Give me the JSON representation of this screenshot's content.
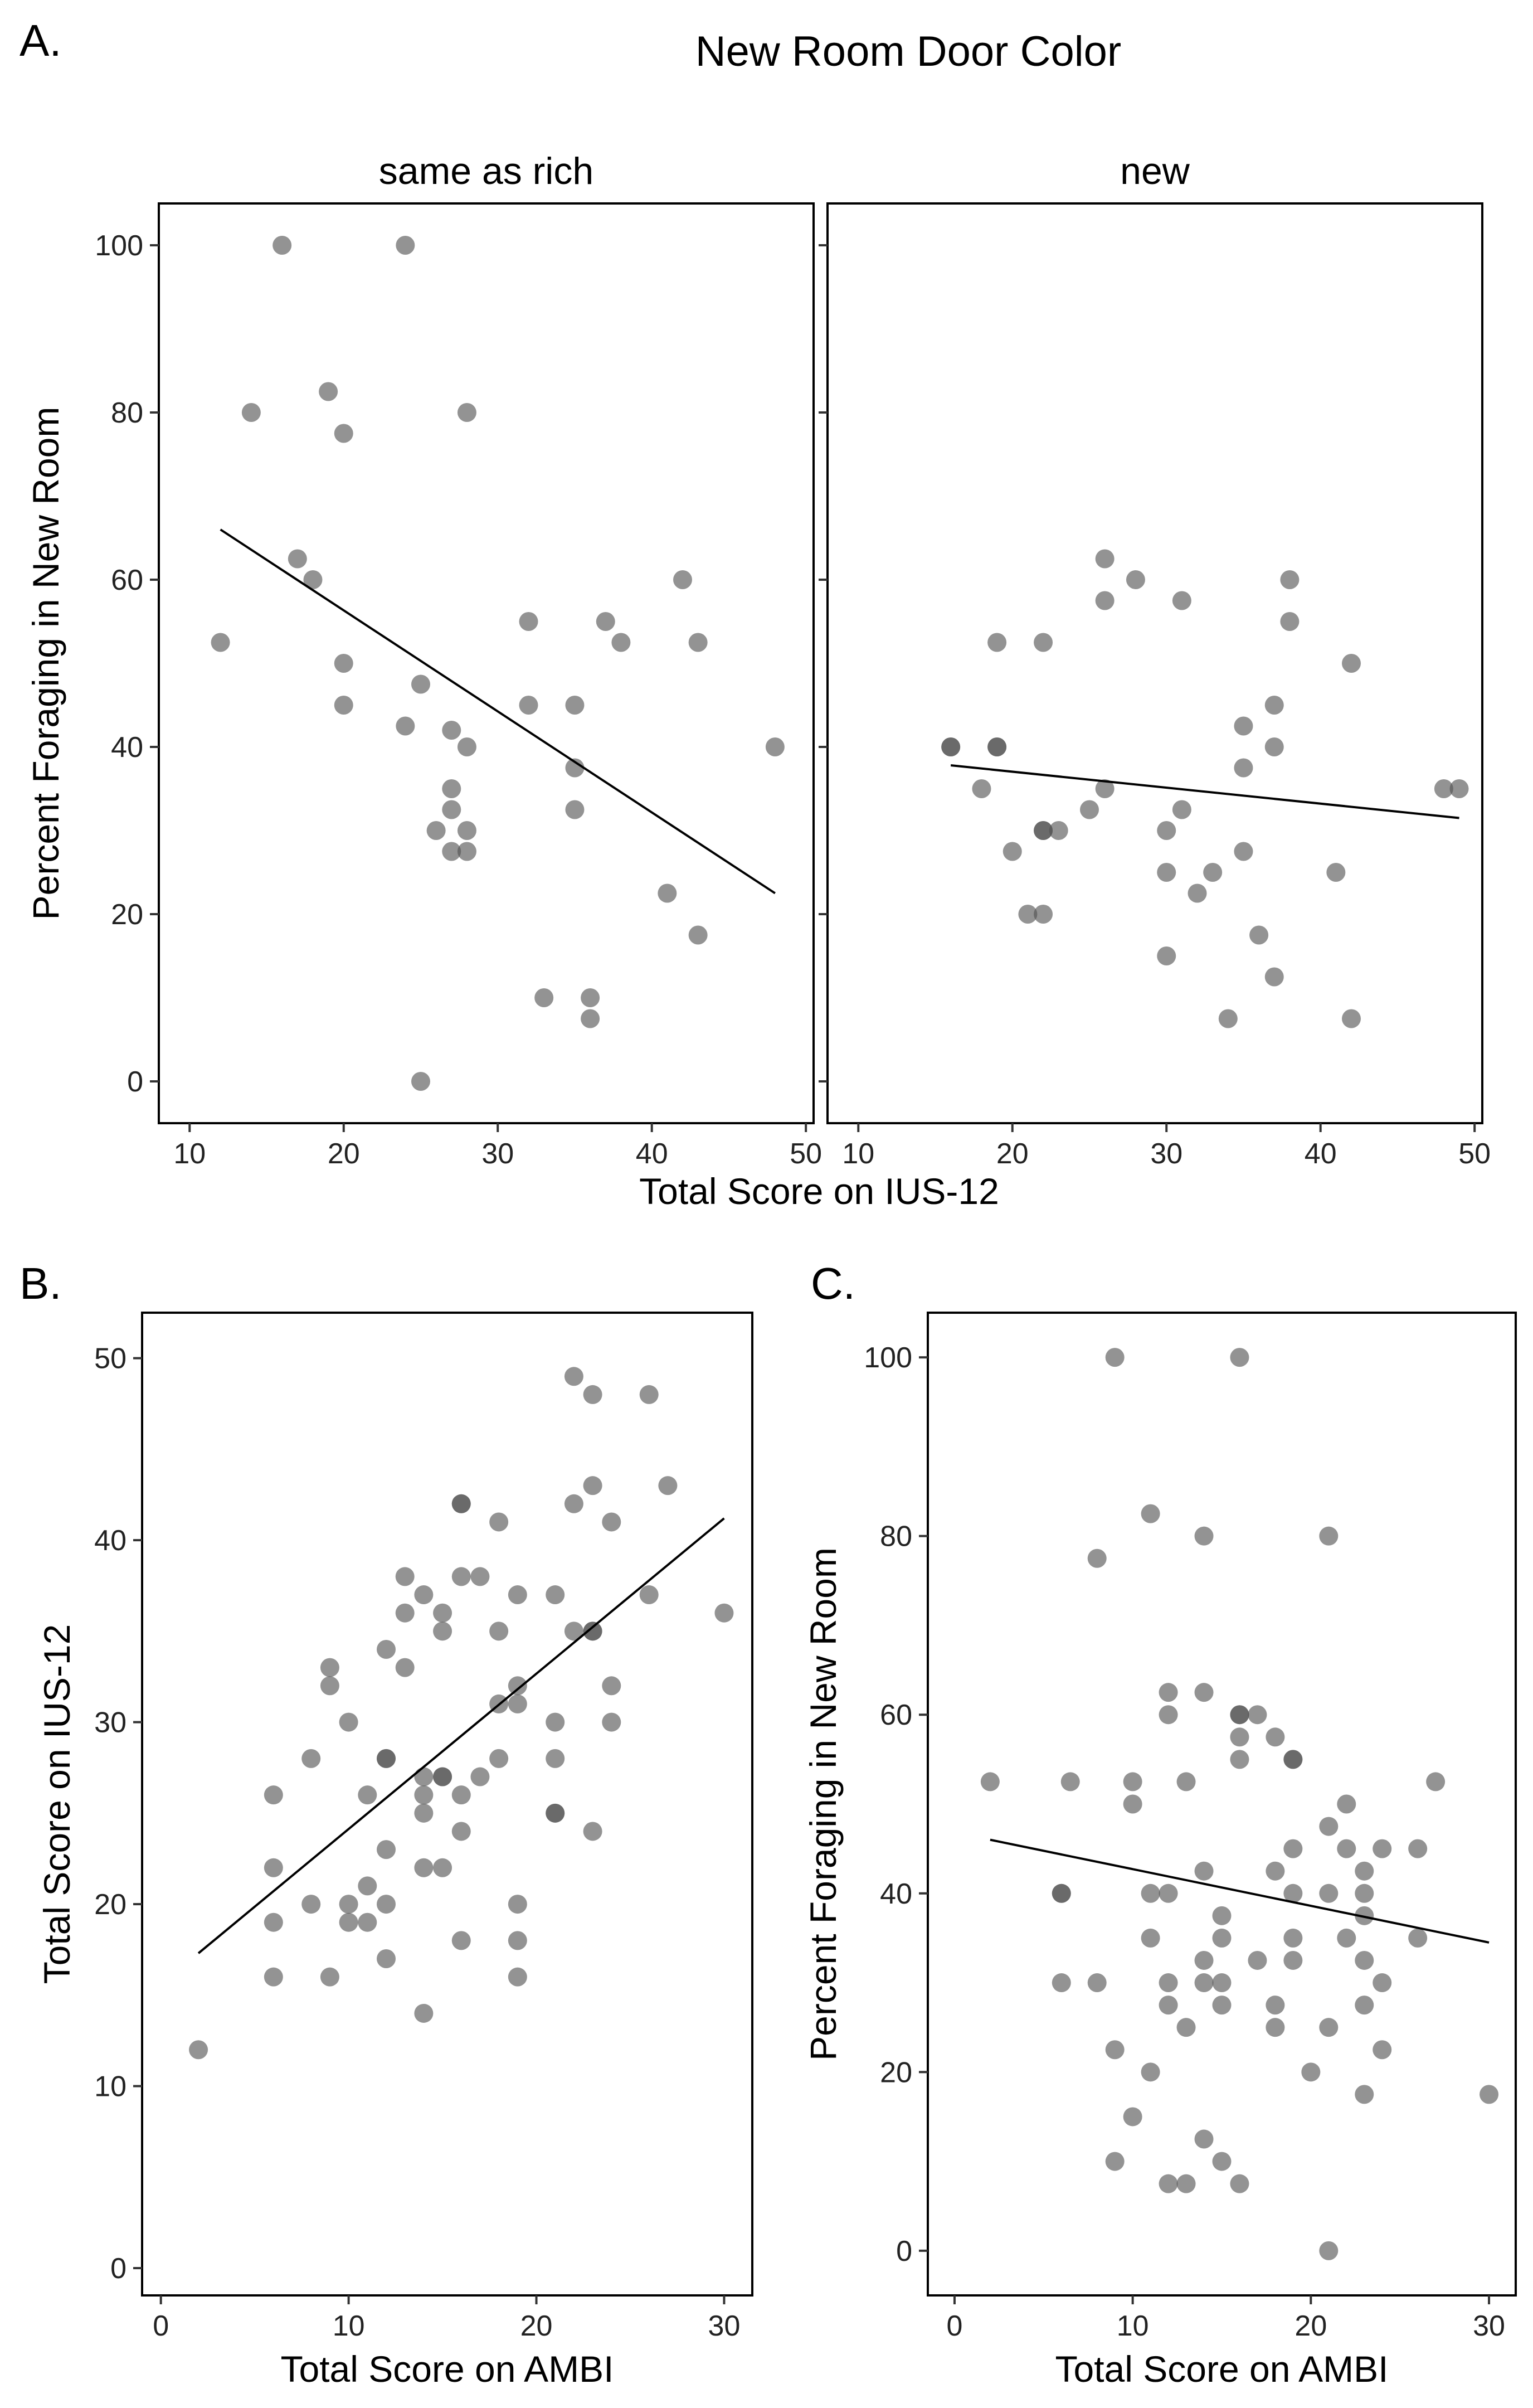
{
  "figure_title": "New Room Door Color",
  "panel_labels": {
    "a": "A.",
    "b": "B.",
    "c": "C."
  },
  "chart_data": [
    {
      "id": "A-left",
      "type": "scatter",
      "panel": "A.",
      "title": "New Room Door Color",
      "facet_label": "same as rich",
      "xlabel": "Total Score on IUS-12",
      "ylabel": "Percent Foraging in New Room",
      "xlim": [
        8,
        50.5
      ],
      "ylim": [
        -5,
        105
      ],
      "xticks": [
        10,
        20,
        30,
        40,
        50
      ],
      "yticks": [
        0,
        20,
        40,
        60,
        80,
        100
      ],
      "fit_line": {
        "x": [
          12,
          48
        ],
        "y": [
          66,
          22.5
        ]
      },
      "points": [
        {
          "x": 12,
          "y": 52.5
        },
        {
          "x": 14,
          "y": 80
        },
        {
          "x": 16,
          "y": 100
        },
        {
          "x": 17,
          "y": 62.5
        },
        {
          "x": 18,
          "y": 60
        },
        {
          "x": 19,
          "y": 82.5
        },
        {
          "x": 20,
          "y": 77.5
        },
        {
          "x": 20,
          "y": 50
        },
        {
          "x": 20,
          "y": 45
        },
        {
          "x": 24,
          "y": 100
        },
        {
          "x": 24,
          "y": 42.5
        },
        {
          "x": 25,
          "y": 47.5
        },
        {
          "x": 25,
          "y": 0
        },
        {
          "x": 26,
          "y": 30
        },
        {
          "x": 27,
          "y": 42
        },
        {
          "x": 27,
          "y": 35
        },
        {
          "x": 27,
          "y": 32.5
        },
        {
          "x": 27,
          "y": 27.5
        },
        {
          "x": 28,
          "y": 80
        },
        {
          "x": 28,
          "y": 40
        },
        {
          "x": 28,
          "y": 30
        },
        {
          "x": 28,
          "y": 27.5
        },
        {
          "x": 32,
          "y": 55
        },
        {
          "x": 32,
          "y": 45
        },
        {
          "x": 33,
          "y": 10
        },
        {
          "x": 35,
          "y": 45
        },
        {
          "x": 35,
          "y": 37.5
        },
        {
          "x": 35,
          "y": 32.5
        },
        {
          "x": 36,
          "y": 10
        },
        {
          "x": 36,
          "y": 7.5
        },
        {
          "x": 37,
          "y": 55
        },
        {
          "x": 38,
          "y": 52.5
        },
        {
          "x": 41,
          "y": 22.5
        },
        {
          "x": 42,
          "y": 60
        },
        {
          "x": 43,
          "y": 52.5
        },
        {
          "x": 43,
          "y": 17.5
        },
        {
          "x": 48,
          "y": 40
        }
      ]
    },
    {
      "id": "A-right",
      "type": "scatter",
      "panel": "A.",
      "facet_label": "new",
      "xlabel": "Total Score on IUS-12",
      "ylabel": "",
      "xlim": [
        8,
        50.5
      ],
      "ylim": [
        -5,
        105
      ],
      "xticks": [
        10,
        20,
        30,
        40,
        50
      ],
      "yticks": [
        0,
        20,
        40,
        60,
        80,
        100
      ],
      "fit_line": {
        "x": [
          16,
          49
        ],
        "y": [
          37.8,
          31.5
        ]
      },
      "points": [
        {
          "x": 16,
          "y": 40
        },
        {
          "x": 16,
          "y": 40
        },
        {
          "x": 18,
          "y": 35
        },
        {
          "x": 19,
          "y": 52.5
        },
        {
          "x": 19,
          "y": 40
        },
        {
          "x": 19,
          "y": 40
        },
        {
          "x": 20,
          "y": 27.5
        },
        {
          "x": 21,
          "y": 20
        },
        {
          "x": 22,
          "y": 52.5
        },
        {
          "x": 22,
          "y": 30
        },
        {
          "x": 22,
          "y": 30
        },
        {
          "x": 22,
          "y": 20
        },
        {
          "x": 23,
          "y": 30
        },
        {
          "x": 25,
          "y": 32.5
        },
        {
          "x": 26,
          "y": 62.5
        },
        {
          "x": 26,
          "y": 57.5
        },
        {
          "x": 26,
          "y": 35
        },
        {
          "x": 28,
          "y": 60
        },
        {
          "x": 30,
          "y": 30
        },
        {
          "x": 30,
          "y": 25
        },
        {
          "x": 30,
          "y": 15
        },
        {
          "x": 31,
          "y": 57.5
        },
        {
          "x": 31,
          "y": 32.5
        },
        {
          "x": 32,
          "y": 22.5
        },
        {
          "x": 33,
          "y": 25
        },
        {
          "x": 34,
          "y": 7.5
        },
        {
          "x": 35,
          "y": 27.5
        },
        {
          "x": 35,
          "y": 42.5
        },
        {
          "x": 35,
          "y": 37.5
        },
        {
          "x": 36,
          "y": 17.5
        },
        {
          "x": 37,
          "y": 45
        },
        {
          "x": 37,
          "y": 40
        },
        {
          "x": 37,
          "y": 12.5
        },
        {
          "x": 38,
          "y": 60
        },
        {
          "x": 38,
          "y": 55
        },
        {
          "x": 41,
          "y": 25
        },
        {
          "x": 42,
          "y": 50
        },
        {
          "x": 42,
          "y": 7.5
        },
        {
          "x": 48,
          "y": 35
        },
        {
          "x": 49,
          "y": 35
        }
      ]
    },
    {
      "id": "B",
      "type": "scatter",
      "panel": "B.",
      "xlabel": "Total Score on AMBI",
      "ylabel": "Total Score on IUS-12",
      "xlim": [
        -1,
        31.5
      ],
      "ylim": [
        -1.5,
        52.5
      ],
      "xticks": [
        0,
        10,
        20,
        30
      ],
      "yticks": [
        0,
        10,
        20,
        30,
        40,
        50
      ],
      "fit_line": {
        "x": [
          2,
          30
        ],
        "y": [
          17.3,
          41.2
        ]
      },
      "points": [
        {
          "x": 2,
          "y": 12
        },
        {
          "x": 6,
          "y": 22
        },
        {
          "x": 6,
          "y": 19
        },
        {
          "x": 6,
          "y": 26
        },
        {
          "x": 6,
          "y": 16
        },
        {
          "x": 8,
          "y": 28
        },
        {
          "x": 8,
          "y": 20
        },
        {
          "x": 9,
          "y": 33
        },
        {
          "x": 9,
          "y": 16
        },
        {
          "x": 9,
          "y": 32
        },
        {
          "x": 10,
          "y": 30
        },
        {
          "x": 10,
          "y": 20
        },
        {
          "x": 10,
          "y": 19
        },
        {
          "x": 11,
          "y": 21
        },
        {
          "x": 11,
          "y": 19
        },
        {
          "x": 11,
          "y": 26
        },
        {
          "x": 12,
          "y": 34
        },
        {
          "x": 12,
          "y": 28
        },
        {
          "x": 12,
          "y": 28
        },
        {
          "x": 12,
          "y": 23
        },
        {
          "x": 12,
          "y": 20
        },
        {
          "x": 12,
          "y": 17
        },
        {
          "x": 13,
          "y": 38
        },
        {
          "x": 13,
          "y": 36
        },
        {
          "x": 13,
          "y": 33
        },
        {
          "x": 14,
          "y": 37
        },
        {
          "x": 14,
          "y": 27
        },
        {
          "x": 14,
          "y": 26
        },
        {
          "x": 14,
          "y": 25
        },
        {
          "x": 14,
          "y": 22
        },
        {
          "x": 14,
          "y": 14
        },
        {
          "x": 15,
          "y": 36
        },
        {
          "x": 15,
          "y": 35
        },
        {
          "x": 15,
          "y": 27
        },
        {
          "x": 15,
          "y": 27
        },
        {
          "x": 15,
          "y": 22
        },
        {
          "x": 16,
          "y": 42
        },
        {
          "x": 16,
          "y": 42
        },
        {
          "x": 16,
          "y": 38
        },
        {
          "x": 16,
          "y": 26
        },
        {
          "x": 16,
          "y": 24
        },
        {
          "x": 16,
          "y": 18
        },
        {
          "x": 17,
          "y": 38
        },
        {
          "x": 17,
          "y": 27
        },
        {
          "x": 18,
          "y": 41
        },
        {
          "x": 18,
          "y": 35
        },
        {
          "x": 18,
          "y": 31
        },
        {
          "x": 18,
          "y": 28
        },
        {
          "x": 19,
          "y": 37
        },
        {
          "x": 19,
          "y": 32
        },
        {
          "x": 19,
          "y": 31
        },
        {
          "x": 19,
          "y": 20
        },
        {
          "x": 19,
          "y": 18
        },
        {
          "x": 19,
          "y": 16
        },
        {
          "x": 21,
          "y": 37
        },
        {
          "x": 21,
          "y": 30
        },
        {
          "x": 21,
          "y": 28
        },
        {
          "x": 21,
          "y": 25
        },
        {
          "x": 21,
          "y": 25
        },
        {
          "x": 22,
          "y": 49
        },
        {
          "x": 22,
          "y": 42
        },
        {
          "x": 22,
          "y": 35
        },
        {
          "x": 23,
          "y": 48
        },
        {
          "x": 23,
          "y": 43
        },
        {
          "x": 23,
          "y": 35
        },
        {
          "x": 23,
          "y": 35
        },
        {
          "x": 23,
          "y": 24
        },
        {
          "x": 24,
          "y": 41
        },
        {
          "x": 24,
          "y": 32
        },
        {
          "x": 24,
          "y": 30
        },
        {
          "x": 26,
          "y": 48
        },
        {
          "x": 26,
          "y": 37
        },
        {
          "x": 27,
          "y": 43
        },
        {
          "x": 30,
          "y": 36
        }
      ]
    },
    {
      "id": "C",
      "type": "scatter",
      "panel": "C.",
      "xlabel": "Total Score on AMBI",
      "ylabel": "Percent Foraging in New Room",
      "xlim": [
        -1.5,
        31.5
      ],
      "ylim": [
        -5,
        105
      ],
      "xticks": [
        0,
        10,
        20,
        30
      ],
      "yticks": [
        0,
        20,
        40,
        60,
        80,
        100
      ],
      "fit_line": {
        "x": [
          2,
          30
        ],
        "y": [
          46,
          34.5
        ]
      },
      "points": [
        {
          "x": 2,
          "y": 52.5
        },
        {
          "x": 6,
          "y": 40
        },
        {
          "x": 6,
          "y": 40
        },
        {
          "x": 6,
          "y": 30
        },
        {
          "x": 6.5,
          "y": 52.5
        },
        {
          "x": 8,
          "y": 77.5
        },
        {
          "x": 8,
          "y": 30
        },
        {
          "x": 9,
          "y": 100
        },
        {
          "x": 9,
          "y": 22.5
        },
        {
          "x": 9,
          "y": 10
        },
        {
          "x": 10,
          "y": 52.5
        },
        {
          "x": 10,
          "y": 50
        },
        {
          "x": 10,
          "y": 15
        },
        {
          "x": 11,
          "y": 82.5
        },
        {
          "x": 11,
          "y": 40
        },
        {
          "x": 11,
          "y": 35
        },
        {
          "x": 11,
          "y": 20
        },
        {
          "x": 12,
          "y": 62.5
        },
        {
          "x": 12,
          "y": 60
        },
        {
          "x": 12,
          "y": 40
        },
        {
          "x": 12,
          "y": 30
        },
        {
          "x": 12,
          "y": 27.5
        },
        {
          "x": 12,
          "y": 7.5
        },
        {
          "x": 13,
          "y": 52.5
        },
        {
          "x": 13,
          "y": 25
        },
        {
          "x": 13,
          "y": 7.5
        },
        {
          "x": 14,
          "y": 80
        },
        {
          "x": 14,
          "y": 62.5
        },
        {
          "x": 14,
          "y": 42.5
        },
        {
          "x": 14,
          "y": 32.5
        },
        {
          "x": 14,
          "y": 30
        },
        {
          "x": 14,
          "y": 12.5
        },
        {
          "x": 15,
          "y": 37.5
        },
        {
          "x": 15,
          "y": 35
        },
        {
          "x": 15,
          "y": 30
        },
        {
          "x": 15,
          "y": 27.5
        },
        {
          "x": 15,
          "y": 10
        },
        {
          "x": 16,
          "y": 100
        },
        {
          "x": 16,
          "y": 60
        },
        {
          "x": 16,
          "y": 60
        },
        {
          "x": 16,
          "y": 57.5
        },
        {
          "x": 16,
          "y": 55
        },
        {
          "x": 16,
          "y": 7.5
        },
        {
          "x": 17,
          "y": 60
        },
        {
          "x": 17,
          "y": 32.5
        },
        {
          "x": 18,
          "y": 57.5
        },
        {
          "x": 18,
          "y": 42.5
        },
        {
          "x": 18,
          "y": 27.5
        },
        {
          "x": 18,
          "y": 25
        },
        {
          "x": 19,
          "y": 55
        },
        {
          "x": 19,
          "y": 55
        },
        {
          "x": 19,
          "y": 45
        },
        {
          "x": 19,
          "y": 40
        },
        {
          "x": 19,
          "y": 35
        },
        {
          "x": 19,
          "y": 32.5
        },
        {
          "x": 20,
          "y": 20
        },
        {
          "x": 21,
          "y": 80
        },
        {
          "x": 21,
          "y": 47.5
        },
        {
          "x": 21,
          "y": 40
        },
        {
          "x": 21,
          "y": 25
        },
        {
          "x": 21,
          "y": 0
        },
        {
          "x": 22,
          "y": 50
        },
        {
          "x": 22,
          "y": 45
        },
        {
          "x": 22,
          "y": 35
        },
        {
          "x": 23,
          "y": 42.5
        },
        {
          "x": 23,
          "y": 40
        },
        {
          "x": 23,
          "y": 37.5
        },
        {
          "x": 23,
          "y": 32.5
        },
        {
          "x": 23,
          "y": 27.5
        },
        {
          "x": 23,
          "y": 17.5
        },
        {
          "x": 24,
          "y": 45
        },
        {
          "x": 24,
          "y": 30
        },
        {
          "x": 24,
          "y": 22.5
        },
        {
          "x": 26,
          "y": 45
        },
        {
          "x": 26,
          "y": 35
        },
        {
          "x": 27,
          "y": 52.5
        },
        {
          "x": 30,
          "y": 17.5
        }
      ]
    }
  ]
}
